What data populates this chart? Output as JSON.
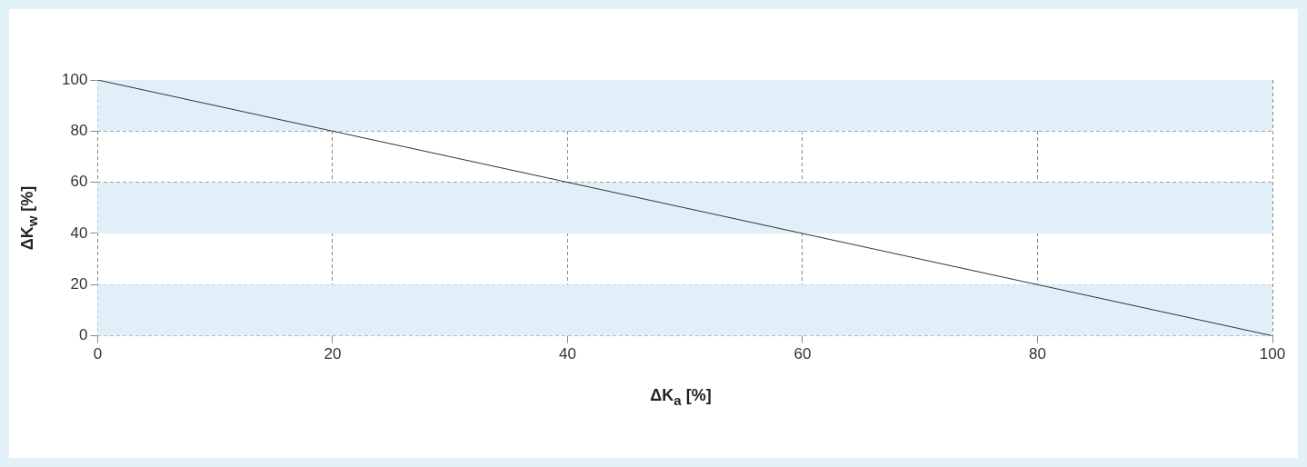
{
  "chart_data": {
    "type": "line",
    "xlabel": "ΔK$_{a}$ [%]",
    "ylabel": "ΔK$_{w}$ [%]",
    "x": [
      0,
      100
    ],
    "series": [
      {
        "color": "#333333",
        "values": [
          100,
          0
        ]
      }
    ],
    "xlim": [
      0,
      100
    ],
    "ylim": [
      0,
      100
    ],
    "xticks": [
      0,
      20,
      40,
      60,
      80,
      100
    ],
    "yticks": [
      0,
      20,
      40,
      60,
      80,
      100
    ],
    "grid": true,
    "legend": false,
    "marker": "none",
    "line_style": "solid",
    "bands": [
      {
        "axis": "y",
        "from": 0,
        "to": 20,
        "color": "#e1f0f8"
      },
      {
        "axis": "y",
        "from": 40,
        "to": 60,
        "color": "#e1f0f8"
      },
      {
        "axis": "y",
        "from": 80,
        "to": 100,
        "color": "#e1f0f8"
      }
    ]
  }
}
